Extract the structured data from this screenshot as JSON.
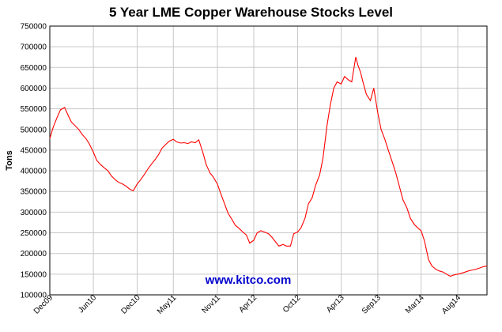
{
  "chart_data": {
    "type": "line",
    "title": "5 Year LME Copper Warehouse Stocks Level",
    "xlabel": "",
    "ylabel": "Tons",
    "ylim": [
      100000,
      750000
    ],
    "y_ticks": [
      100000,
      150000,
      200000,
      250000,
      300000,
      350000,
      400000,
      450000,
      500000,
      550000,
      600000,
      650000,
      700000,
      750000
    ],
    "x_range": [
      "2009-12-01",
      "2014-12-01"
    ],
    "x_ticks": [
      {
        "label": "Dec09",
        "date": "2009-12-01"
      },
      {
        "label": "Jun10",
        "date": "2010-06-01"
      },
      {
        "label": "Dec10",
        "date": "2010-12-01"
      },
      {
        "label": "May11",
        "date": "2011-05-01"
      },
      {
        "label": "Nov11",
        "date": "2011-11-01"
      },
      {
        "label": "Apr12",
        "date": "2012-04-01"
      },
      {
        "label": "Oct12",
        "date": "2012-10-01"
      },
      {
        "label": "Apr13",
        "date": "2013-04-01"
      },
      {
        "label": "Sep13",
        "date": "2013-09-01"
      },
      {
        "label": "Mar14",
        "date": "2014-03-01"
      },
      {
        "label": "Aug14",
        "date": "2014-08-01"
      }
    ],
    "grid": true,
    "line_color": "#ff0000",
    "watermark": "www.kitco.com",
    "watermark_color": "#0000cc",
    "series": [
      {
        "x": [
          "2009-12-01",
          "2009-12-15",
          "2010-01-01",
          "2010-01-15",
          "2010-02-01",
          "2010-02-15",
          "2010-03-01",
          "2010-03-15",
          "2010-04-01",
          "2010-04-15",
          "2010-05-01",
          "2010-05-15",
          "2010-06-01",
          "2010-06-15",
          "2010-07-01",
          "2010-07-15",
          "2010-08-01",
          "2010-08-15",
          "2010-09-01",
          "2010-09-15",
          "2010-10-01",
          "2010-10-15",
          "2010-11-01",
          "2010-11-15",
          "2010-12-01",
          "2010-12-15",
          "2011-01-01",
          "2011-01-15",
          "2011-02-01",
          "2011-02-15",
          "2011-03-01",
          "2011-03-15",
          "2011-04-01",
          "2011-04-15",
          "2011-05-01",
          "2011-05-15",
          "2011-06-01",
          "2011-06-15",
          "2011-07-01",
          "2011-07-15",
          "2011-08-01",
          "2011-08-15",
          "2011-09-01",
          "2011-09-15",
          "2011-10-01",
          "2011-10-15",
          "2011-11-01",
          "2011-11-15",
          "2011-12-01",
          "2011-12-15",
          "2012-01-01",
          "2012-01-15",
          "2012-02-01",
          "2012-02-15",
          "2012-03-01",
          "2012-03-15",
          "2012-04-01",
          "2012-04-15",
          "2012-05-01",
          "2012-05-15",
          "2012-06-01",
          "2012-06-15",
          "2012-07-01",
          "2012-07-15",
          "2012-08-01",
          "2012-08-15",
          "2012-09-01",
          "2012-09-15",
          "2012-10-01",
          "2012-10-15",
          "2012-11-01",
          "2012-11-15",
          "2012-12-01",
          "2012-12-15",
          "2013-01-01",
          "2013-01-15",
          "2013-02-01",
          "2013-02-15",
          "2013-03-01",
          "2013-03-15",
          "2013-04-01",
          "2013-04-15",
          "2013-05-01",
          "2013-05-15",
          "2013-06-01",
          "2013-06-10",
          "2013-06-20",
          "2013-07-01",
          "2013-07-15",
          "2013-08-01",
          "2013-08-15",
          "2013-09-01",
          "2013-09-15",
          "2013-10-01",
          "2013-10-15",
          "2013-11-01",
          "2013-11-15",
          "2013-12-01",
          "2013-12-15",
          "2014-01-01",
          "2014-01-15",
          "2014-02-01",
          "2014-02-15",
          "2014-03-01",
          "2014-03-15",
          "2014-04-01",
          "2014-04-15",
          "2014-05-01",
          "2014-05-15",
          "2014-06-01",
          "2014-06-15",
          "2014-07-01",
          "2014-07-15",
          "2014-08-01",
          "2014-08-15",
          "2014-09-01",
          "2014-09-15",
          "2014-10-01",
          "2014-10-15",
          "2014-11-01",
          "2014-11-15",
          "2014-12-01"
        ],
        "y": [
          478000,
          505000,
          530000,
          548000,
          553000,
          535000,
          518000,
          510000,
          500000,
          488000,
          478000,
          465000,
          445000,
          425000,
          415000,
          408000,
          400000,
          388000,
          378000,
          372000,
          368000,
          363000,
          355000,
          352000,
          368000,
          378000,
          392000,
          405000,
          418000,
          428000,
          440000,
          455000,
          465000,
          472000,
          476000,
          470000,
          467000,
          468000,
          466000,
          470000,
          468000,
          475000,
          445000,
          415000,
          395000,
          385000,
          368000,
          345000,
          320000,
          298000,
          282000,
          268000,
          260000,
          252000,
          245000,
          225000,
          232000,
          250000,
          255000,
          252000,
          248000,
          240000,
          228000,
          218000,
          222000,
          218000,
          218000,
          248000,
          252000,
          262000,
          285000,
          320000,
          335000,
          365000,
          390000,
          430000,
          510000,
          560000,
          600000,
          615000,
          610000,
          628000,
          620000,
          615000,
          675000,
          655000,
          640000,
          615000,
          585000,
          570000,
          600000,
          540000,
          500000,
          475000,
          450000,
          420000,
          395000,
          360000,
          330000,
          310000,
          285000,
          270000,
          262000,
          255000,
          230000,
          185000,
          170000,
          162000,
          158000,
          155000,
          150000,
          145000,
          148000,
          150000,
          152000,
          155000,
          158000,
          160000,
          162000,
          165000,
          168000,
          170000
        ]
      }
    ]
  }
}
